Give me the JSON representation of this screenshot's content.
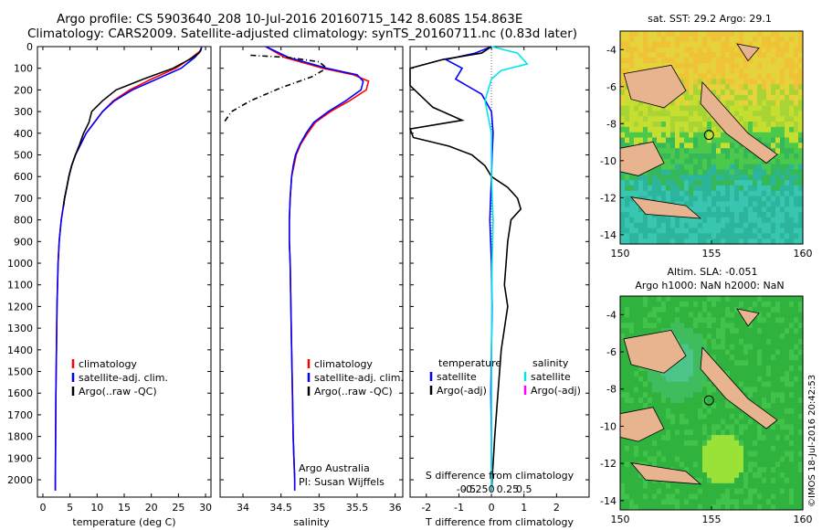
{
  "header": {
    "title1": "Argo profile: CS 5903640_208 10-Jul-2016 20160715_142 8.608S 154.863E",
    "title2": "Climatology: CARS2009. Satellite-adjusted climatology: synTS_20160711.nc (0.83d later)"
  },
  "colors": {
    "climatology": "#ff0000",
    "satellite": "#0000ff",
    "argo": "#000000",
    "sat_salinity": "#00e5ee",
    "argo_salinity_adj": "#ff00ff",
    "land": "#e8b48f"
  },
  "chart_data": [
    {
      "type": "line",
      "name": "temperature-panel",
      "xlabel": "temperature (deg C)",
      "ylabel": "",
      "xlim": [
        -1,
        31
      ],
      "ylim": [
        2080,
        0
      ],
      "xticks": [
        0,
        5,
        10,
        15,
        20,
        25,
        30
      ],
      "yticks": [
        0,
        100,
        200,
        300,
        400,
        500,
        600,
        700,
        800,
        900,
        1000,
        1100,
        1200,
        1300,
        1400,
        1500,
        1600,
        1700,
        1800,
        1900,
        2000
      ],
      "legend": [
        "climatology",
        "satellite-adj. clim.",
        "Argo(..raw -QC)"
      ],
      "series": [
        {
          "name": "climatology",
          "color": "#ff0000",
          "x": [
            29.3,
            29.0,
            27.5,
            24.5,
            20,
            16,
            13,
            11,
            9.5,
            8,
            7,
            6,
            5.3,
            4.8,
            4.4,
            4.0,
            3.7,
            3.4,
            3.2,
            3.0,
            2.9,
            2.8,
            2.7,
            2.6,
            2.55,
            2.5,
            2.45,
            2.4,
            2.35,
            2.3,
            2.3
          ],
          "y": [
            0,
            20,
            50,
            100,
            150,
            200,
            250,
            300,
            350,
            400,
            450,
            500,
            550,
            600,
            650,
            700,
            750,
            800,
            850,
            900,
            950,
            1000,
            1100,
            1200,
            1300,
            1400,
            1500,
            1600,
            1800,
            2000,
            2050
          ]
        },
        {
          "name": "satellite-adj. clim.",
          "color": "#0000ff",
          "x": [
            29.3,
            29.1,
            28.0,
            25.5,
            21,
            16.5,
            13.2,
            11,
            9.5,
            8,
            7,
            6,
            5.3,
            4.8,
            4.4,
            4.0,
            3.7,
            3.4,
            3.2,
            3.0,
            2.9,
            2.8,
            2.7,
            2.6,
            2.55,
            2.5,
            2.45,
            2.4,
            2.35,
            2.3,
            2.3
          ],
          "y": [
            0,
            20,
            50,
            100,
            150,
            200,
            250,
            300,
            350,
            400,
            450,
            500,
            550,
            600,
            650,
            700,
            750,
            800,
            850,
            900,
            950,
            1000,
            1100,
            1200,
            1300,
            1400,
            1500,
            1600,
            1800,
            2000,
            2050
          ]
        },
        {
          "name": "Argo(..raw -QC)",
          "color": "#000000",
          "x": [
            29.2,
            28.8,
            27,
            24,
            18.5,
            13.5,
            11,
            9,
            8.5,
            7.5,
            6.8,
            6,
            5.3,
            4.8,
            4.4,
            4.0,
            3.8
          ],
          "y": [
            10,
            30,
            60,
            100,
            150,
            200,
            250,
            300,
            350,
            400,
            450,
            500,
            550,
            600,
            650,
            700,
            740
          ]
        }
      ]
    },
    {
      "type": "line",
      "name": "salinity-panel",
      "xlabel": "salinity",
      "ylabel": "",
      "xlim": [
        33.7,
        36.1
      ],
      "ylim": [
        2080,
        0
      ],
      "xticks": [
        34,
        34.5,
        35,
        35.5,
        36
      ],
      "legend": [
        "climatology",
        "satellite-adj. clim.",
        "Argo(..raw -QC)"
      ],
      "annotation": [
        "Argo Australia",
        "PI: Susan Wijffels"
      ],
      "series": [
        {
          "name": "climatology",
          "color": "#ff0000",
          "x": [
            34.3,
            34.55,
            35.05,
            35.45,
            35.65,
            35.62,
            35.4,
            35.15,
            34.95,
            34.85,
            34.76,
            34.7,
            34.67,
            34.64,
            34.62,
            34.61,
            34.61,
            34.62,
            34.63,
            34.64,
            34.65,
            34.66,
            34.67,
            34.68,
            34.68
          ],
          "y": [
            0,
            50,
            100,
            130,
            160,
            200,
            250,
            300,
            350,
            400,
            450,
            500,
            550,
            600,
            700,
            800,
            900,
            1000,
            1200,
            1400,
            1600,
            1800,
            1900,
            2000,
            2050
          ]
        },
        {
          "name": "satellite-adj. clim.",
          "color": "#0000ff",
          "x": [
            34.3,
            34.6,
            35.1,
            35.5,
            35.58,
            35.55,
            35.35,
            35.12,
            34.93,
            34.83,
            34.75,
            34.69,
            34.66,
            34.64,
            34.62,
            34.61,
            34.61,
            34.62,
            34.63,
            34.64,
            34.65,
            34.66,
            34.67,
            34.68,
            34.68
          ],
          "y": [
            0,
            50,
            100,
            130,
            160,
            200,
            250,
            300,
            350,
            400,
            450,
            500,
            550,
            600,
            700,
            800,
            900,
            1000,
            1200,
            1400,
            1600,
            1800,
            1900,
            2000,
            2050
          ]
        },
        {
          "name": "Argo(..raw -QC)",
          "color": "#000000",
          "x": [
            34.1,
            34.6,
            35.0,
            35.1,
            34.9,
            34.5,
            34.1,
            33.85,
            33.75
          ],
          "y": [
            40,
            50,
            70,
            100,
            140,
            190,
            250,
            300,
            350
          ]
        }
      ]
    },
    {
      "type": "line",
      "name": "difference-panel",
      "xlabel": "T difference from climatology",
      "xlabel2": "S difference from climatology",
      "xlim": [
        -2.5,
        3
      ],
      "ylim": [
        2080,
        0
      ],
      "xticks": [
        -2,
        -1,
        0,
        1,
        2
      ],
      "xticks_s": [
        "-0.5",
        "-0.25",
        "0",
        "0.25",
        "0.5"
      ],
      "legend_t": {
        "title": "temperature",
        "items": [
          "satellite",
          "Argo(-adj)"
        ]
      },
      "legend_s": {
        "title": "salinity",
        "items": [
          "satellite",
          "Argo(-adj)"
        ]
      },
      "series": [
        {
          "name": "temperature satellite",
          "color": "#0000ff",
          "x": [
            0,
            -0.5,
            -1.4,
            -0.9,
            -1.1,
            -0.3,
            0,
            0.05,
            0.02,
            0,
            -0.05,
            0,
            0.02,
            0,
            -0.02,
            0,
            0
          ],
          "y": [
            0,
            30,
            60,
            100,
            150,
            220,
            300,
            400,
            500,
            600,
            800,
            1000,
            1200,
            1400,
            1600,
            1800,
            2050
          ]
        },
        {
          "name": "temperature Argo(-adj)",
          "color": "#000000",
          "x": [
            0,
            -0.3,
            -1.5,
            -2.5,
            -2.5,
            -1.8,
            -0.9,
            -2.5,
            -2.4,
            -1.3,
            -0.6,
            -0.2,
            0,
            0.5,
            0.8,
            0.9,
            0.6,
            0.5,
            0.45,
            0.4,
            0.5,
            0.3,
            0.2,
            0.1,
            0
          ],
          "y": [
            0,
            30,
            60,
            100,
            180,
            280,
            340,
            380,
            420,
            460,
            500,
            550,
            600,
            650,
            700,
            750,
            800,
            900,
            1000,
            1100,
            1200,
            1400,
            1600,
            1800,
            2050
          ]
        },
        {
          "name": "salinity satellite",
          "color": "#00e5ee",
          "x": [
            0,
            0.8,
            1.1,
            0.3,
            0,
            -0.2,
            0,
            0,
            0.05,
            0.02,
            0,
            0,
            0
          ],
          "y": [
            0,
            30,
            80,
            110,
            150,
            250,
            400,
            600,
            800,
            1000,
            1400,
            1800,
            2050
          ]
        }
      ]
    }
  ],
  "maps": {
    "sst": {
      "label": "sat. SST: 29.2 Argo: 29.1",
      "xticks": [
        "150",
        "155",
        "160"
      ],
      "yticks": [
        "-4",
        "-6",
        "-8",
        "-10",
        "-12",
        "-14"
      ]
    },
    "sla": {
      "label1": "Altim. SLA: -0.051",
      "label2": "Argo h1000: NaN h2000: NaN",
      "xticks": [
        "150",
        "155",
        "160"
      ],
      "yticks": [
        "-4",
        "-6",
        "-8",
        "-10",
        "-12",
        "-14"
      ]
    }
  },
  "footer": {
    "credit": "©IMOS 18-Jul-2016 20:42:53"
  }
}
